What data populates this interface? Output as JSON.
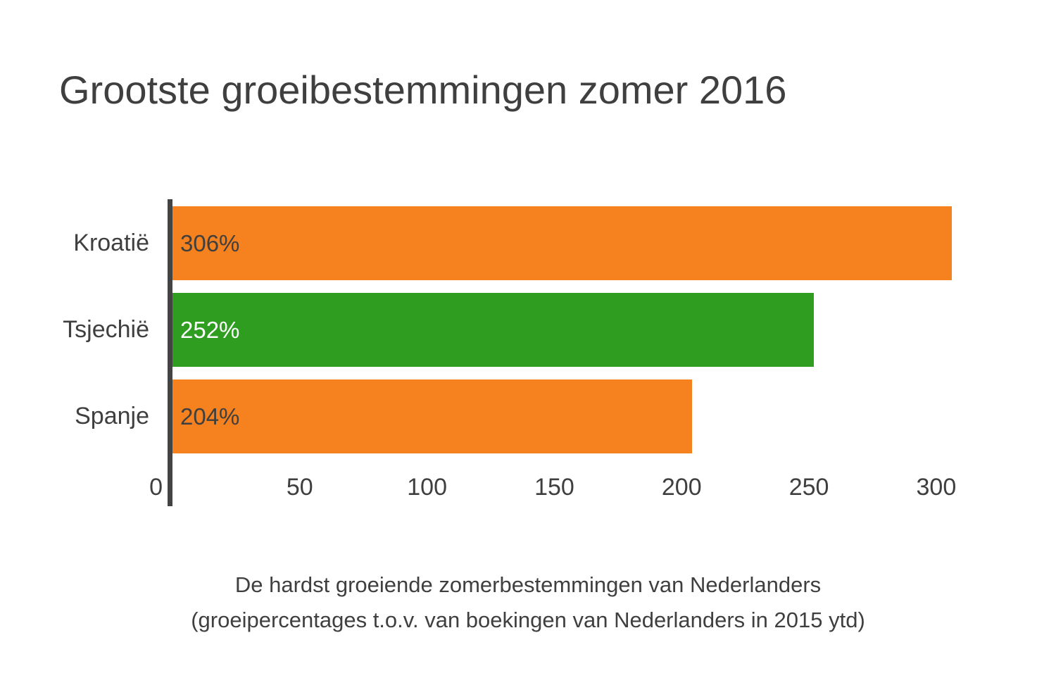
{
  "title": "Grootste groeibestemmingen zomer 2016",
  "caption": {
    "line1": "De hardst groeiende zomerbestemmingen van Nederlanders",
    "line2": "(groeipercentages t.o.v. van boekingen van Nederlanders in 2015 ytd)"
  },
  "colors": {
    "background": "#FFFFFF",
    "orange": "#F6821F",
    "green": "#2F9E20",
    "axis": "#434343",
    "text": "#3F3F3F",
    "value_on_orange": "#3F3F3F",
    "value_on_green": "#FFFFFF"
  },
  "chart_data": {
    "type": "bar",
    "orientation": "horizontal",
    "title": "Grootste groeibestemmingen zomer 2016",
    "categories": [
      "Kroatië",
      "Tsjechië",
      "Spanje"
    ],
    "values": [
      306,
      252,
      204
    ],
    "value_labels": [
      "306%",
      "252%",
      "204%"
    ],
    "bar_colors": [
      "#F6821F",
      "#2F9E20",
      "#F6821F"
    ],
    "value_label_colors": [
      "#3F3F3F",
      "#FFFFFF",
      "#3F3F3F"
    ],
    "x_ticks": [
      0,
      50,
      100,
      150,
      200,
      250,
      300
    ],
    "xlim": [
      0,
      318
    ],
    "xlabel": "",
    "ylabel": "",
    "grid": false,
    "legend_position": "none",
    "subtitle_line1": "De hardst groeiende zomerbestemmingen van Nederlanders",
    "subtitle_line2": "(groeipercentages t.o.v. van boekingen van Nederlanders in 2015 ytd)"
  }
}
